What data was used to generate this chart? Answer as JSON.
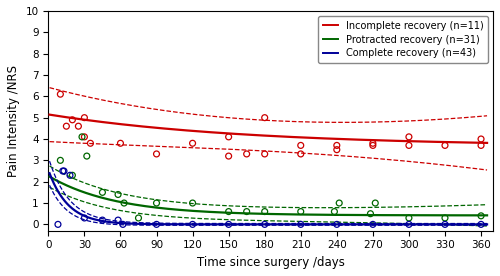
{
  "title": "",
  "xlabel": "Time since surgery /days",
  "ylabel": "Pain Intensity /NRS",
  "xlim": [
    0,
    370
  ],
  "ylim": [
    -0.3,
    10
  ],
  "xticks": [
    0,
    30,
    60,
    90,
    120,
    150,
    180,
    210,
    240,
    270,
    300,
    330,
    360
  ],
  "yticks": [
    0,
    1,
    2,
    3,
    4,
    5,
    6,
    7,
    8,
    9,
    10
  ],
  "legend_entries": [
    "Incomplete recovery (n=11)",
    "Protracted recovery (n=31)",
    "Complete recovery (n=43)"
  ],
  "colors": [
    "#cc0000",
    "#006600",
    "#000099"
  ],
  "incomplete_params": {
    "a": 1.5,
    "b": 0.006,
    "c": 3.65
  },
  "incomplete_ci_base": 0.72,
  "incomplete_ci_spread": 0.55,
  "protracted_params": {
    "a": 1.85,
    "b": 0.018,
    "c": 0.42
  },
  "protracted_ci_base": 0.32,
  "protracted_ci_spread": 0.18,
  "complete_params": {
    "a": 2.55,
    "b": 0.062,
    "c": 0.0
  },
  "complete_ci_a": 0.55,
  "complete_ci_b": 0.045,
  "complete_ci_base": 0.04,
  "incomplete_scatter_x": [
    10,
    15,
    20,
    25,
    30,
    30,
    35,
    60,
    90,
    120,
    150,
    150,
    165,
    180,
    180,
    210,
    210,
    240,
    240,
    270,
    270,
    300,
    300,
    330,
    360,
    360
  ],
  "incomplete_scatter_y": [
    6.1,
    4.6,
    4.9,
    4.6,
    4.1,
    5.0,
    3.8,
    3.8,
    3.3,
    3.8,
    3.2,
    4.1,
    3.3,
    3.3,
    5.0,
    3.7,
    3.3,
    3.5,
    3.7,
    3.7,
    3.8,
    3.7,
    4.1,
    3.7,
    3.7,
    4.0
  ],
  "protracted_scatter_x": [
    10,
    20,
    28,
    32,
    45,
    58,
    63,
    75,
    90,
    120,
    150,
    165,
    180,
    210,
    238,
    242,
    268,
    272,
    300,
    330,
    360
  ],
  "protracted_scatter_y": [
    3.0,
    2.3,
    4.1,
    3.2,
    1.5,
    1.4,
    1.0,
    0.3,
    1.0,
    1.0,
    0.6,
    0.6,
    0.6,
    0.6,
    0.6,
    1.0,
    0.5,
    1.0,
    0.3,
    0.3,
    0.4
  ],
  "complete_scatter_x": [
    8,
    12,
    13,
    18,
    30,
    45,
    58,
    62,
    90,
    120,
    150,
    180,
    210,
    240,
    270,
    300,
    330,
    360
  ],
  "complete_scatter_y": [
    0.0,
    2.5,
    2.5,
    2.3,
    0.3,
    0.2,
    0.2,
    0.0,
    0.0,
    0.0,
    0.0,
    0.0,
    0.0,
    0.0,
    0.0,
    0.0,
    0.0,
    0.0
  ],
  "fig_width": 5.0,
  "fig_height": 2.76,
  "dpi": 100
}
